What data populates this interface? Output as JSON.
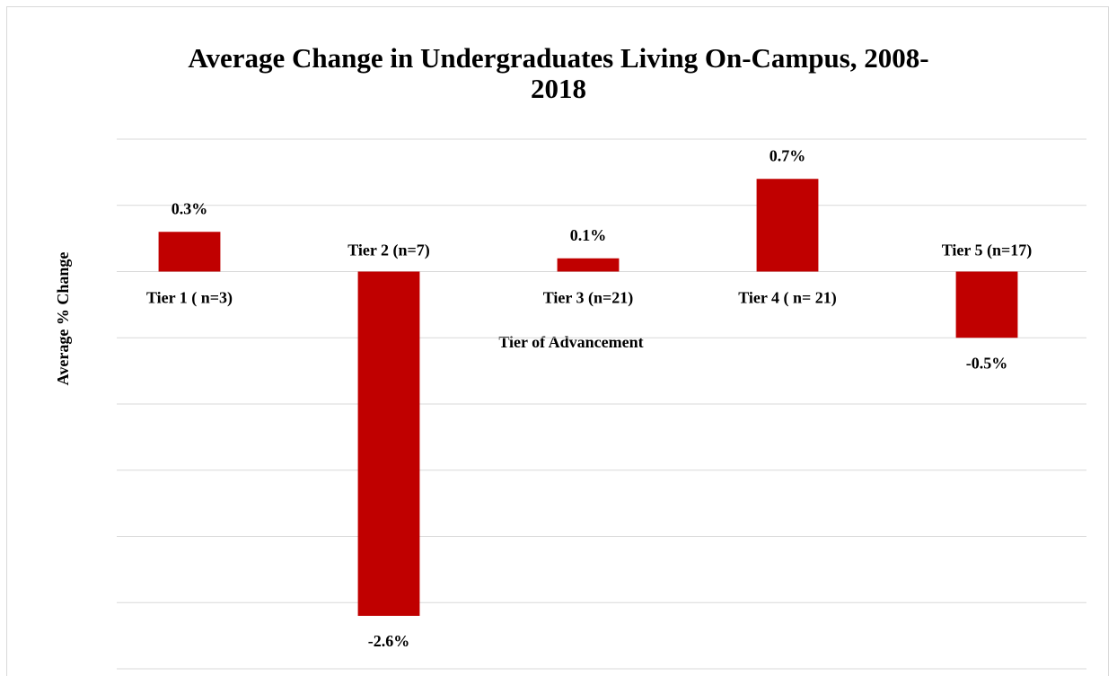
{
  "chart_data": {
    "type": "bar",
    "title": "Average Change in Undergraduates Living On-Campus, 2008-2018",
    "x_label": "Tier of Advancement",
    "y_label": "Average % Change",
    "categories": [
      "Tier 1 ( n=3)",
      "Tier 2 (n=7)",
      "Tier 3 (n=21)",
      "Tier 4 ( n= 21)",
      "Tier 5 (n=17)"
    ],
    "values": [
      0.3,
      -2.6,
      0.1,
      0.7,
      -0.5
    ],
    "value_labels": [
      "0.3%",
      "-2.6%",
      "0.1%",
      "0.7%",
      "-0.5%"
    ],
    "color": "#c00000",
    "ylim": [
      -3,
      1
    ],
    "yticks": [
      -3,
      -2.5,
      -2,
      -1.5,
      -1,
      -0.5,
      0,
      0.5,
      1
    ],
    "grid": true
  }
}
